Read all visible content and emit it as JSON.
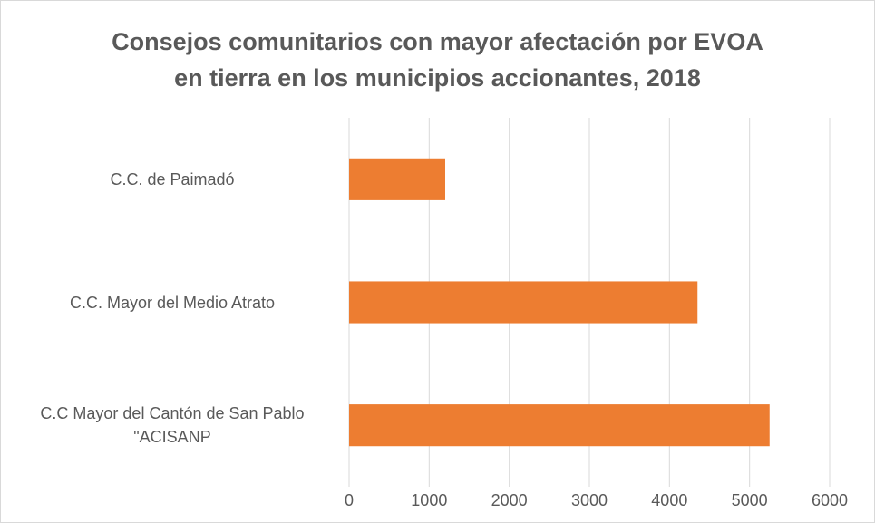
{
  "chart_data": {
    "type": "bar",
    "orientation": "horizontal",
    "title": "Consejos comunitarios con mayor afectación por EVOA\nen tierra en los municipios accionantes, 2018",
    "categories": [
      "C.C. de Paimadó",
      "C.C. Mayor del Medio Atrato",
      "C.C Mayor del Cantón de San Pablo\n\"ACISANP"
    ],
    "values": [
      1200,
      4350,
      5250
    ],
    "color": "#ed7d31",
    "xlim": [
      0,
      6000
    ],
    "xticks": [
      0,
      1000,
      2000,
      3000,
      4000,
      5000,
      6000
    ],
    "grid": true
  }
}
